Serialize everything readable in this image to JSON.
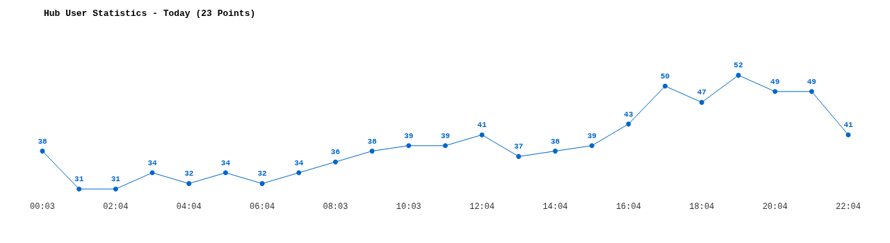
{
  "chart_data": {
    "type": "line",
    "title": "Hub User Statistics - Today (23 Points)",
    "categories": [
      "00:03",
      null,
      "02:04",
      null,
      "04:04",
      null,
      "06:04",
      null,
      "08:03",
      null,
      "10:03",
      null,
      "12:04",
      null,
      "14:04",
      null,
      "16:04",
      null,
      "18:04",
      null,
      "20:04",
      null,
      "22:04"
    ],
    "values": [
      38,
      31,
      31,
      34,
      32,
      34,
      32,
      34,
      36,
      38,
      39,
      39,
      41,
      37,
      38,
      39,
      43,
      50,
      47,
      52,
      49,
      49,
      41
    ],
    "color": "#0066cc",
    "marker": "circle",
    "line_style": "solid",
    "data_labels": true,
    "grid": false
  }
}
